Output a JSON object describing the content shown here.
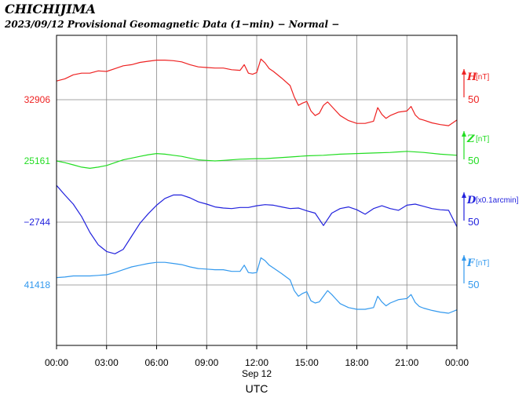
{
  "chart_data": {
    "type": "line",
    "title": "CHICHIJIMA",
    "subtitle": "2023/09/12  Provisional Geomagnetic Data (1−min)  − Normal −",
    "xlabel": "UTC",
    "date_label": "Sep 12",
    "x_ticks": [
      "00:00",
      "03:00",
      "06:00",
      "09:00",
      "12:00",
      "15:00",
      "18:00",
      "21:00",
      "00:00"
    ],
    "xlim_hours": [
      0,
      24
    ],
    "grid": true,
    "series": [
      {
        "name": "H",
        "unit": "[nT]",
        "baseline": "32906",
        "scale_label": "50",
        "color": "#ee2222",
        "x": [
          0,
          0.5,
          1,
          1.5,
          2,
          2.5,
          3,
          3.5,
          4,
          4.5,
          5,
          5.5,
          6,
          6.5,
          7,
          7.5,
          8,
          8.5,
          9,
          9.5,
          10,
          10.5,
          11,
          11.25,
          11.5,
          11.75,
          12,
          12.25,
          12.5,
          12.75,
          13,
          13.5,
          14,
          14.25,
          14.5,
          14.75,
          15,
          15.25,
          15.5,
          15.75,
          16,
          16.25,
          16.5,
          16.75,
          17,
          17.5,
          18,
          18.5,
          19,
          19.25,
          19.5,
          19.75,
          20,
          20.5,
          21,
          21.25,
          21.5,
          21.75,
          22,
          22.5,
          23,
          23.5,
          24
        ],
        "y": [
          33,
          37,
          44,
          47,
          47,
          51,
          50,
          55,
          60,
          62,
          66,
          68,
          70,
          70,
          69,
          67,
          62,
          58,
          57,
          56,
          56,
          53,
          52,
          62,
          47,
          45,
          48,
          72,
          65,
          55,
          50,
          38,
          25,
          5,
          -10,
          -6,
          -3,
          -20,
          -28,
          -24,
          -10,
          -4,
          -12,
          -20,
          -28,
          -37,
          -42,
          -42,
          -38,
          -14,
          -26,
          -33,
          -28,
          -22,
          -20,
          -12,
          -27,
          -34,
          -36,
          -41,
          -44,
          -46,
          -36
        ]
      },
      {
        "name": "Z",
        "unit": "[nT]",
        "baseline": "25161",
        "scale_label": "50",
        "color": "#22dd22",
        "x": [
          0,
          0.5,
          1,
          1.5,
          2,
          2.5,
          3,
          3.5,
          4,
          4.5,
          5,
          5.5,
          6,
          6.5,
          7,
          7.5,
          8,
          8.5,
          9,
          9.5,
          10,
          11,
          12,
          12.5,
          13,
          14,
          15,
          16,
          17,
          18,
          19,
          20,
          21,
          22,
          23,
          24
        ],
        "y": [
          0,
          -3,
          -7,
          -11,
          -13,
          -11,
          -8,
          -3,
          2,
          5,
          8,
          11,
          13,
          12,
          10,
          8,
          5,
          2,
          1,
          0,
          1,
          3,
          4,
          4,
          5,
          7,
          9,
          10,
          12,
          13,
          14,
          15,
          17,
          15,
          12,
          10
        ]
      },
      {
        "name": "D",
        "unit": "[x0.1arcmin]",
        "baseline": "−2744",
        "scale_label": "50",
        "color": "#2222dd",
        "x": [
          0,
          0.5,
          1,
          1.5,
          2,
          2.5,
          3,
          3.5,
          4,
          4.5,
          5,
          5.5,
          6,
          6.5,
          7,
          7.5,
          8,
          8.5,
          9,
          9.5,
          10,
          10.5,
          11,
          11.5,
          12,
          12.5,
          13,
          13.5,
          14,
          14.5,
          15,
          15.5,
          16,
          16.5,
          17,
          17.5,
          18,
          18.5,
          19,
          19.5,
          20,
          20.5,
          21,
          21.5,
          22,
          22.5,
          23,
          23.5,
          24
        ],
        "y": [
          65,
          48,
          32,
          10,
          -18,
          -40,
          -52,
          -56,
          -48,
          -25,
          -2,
          15,
          30,
          42,
          48,
          48,
          43,
          36,
          32,
          27,
          25,
          24,
          26,
          26,
          29,
          31,
          30,
          27,
          24,
          25,
          20,
          16,
          -6,
          16,
          24,
          27,
          22,
          14,
          24,
          29,
          24,
          21,
          30,
          32,
          28,
          24,
          22,
          21,
          -8
        ]
      },
      {
        "name": "F",
        "unit": "[nT]",
        "baseline": "41418",
        "scale_label": "50",
        "color": "#3399ee",
        "x": [
          0,
          0.5,
          1,
          1.5,
          2,
          2.5,
          3,
          3.5,
          4,
          4.5,
          5,
          5.5,
          6,
          6.5,
          7,
          7.5,
          8,
          8.5,
          9,
          9.5,
          10,
          10.5,
          11,
          11.25,
          11.5,
          11.75,
          12,
          12.25,
          12.5,
          12.75,
          13,
          13.5,
          14,
          14.25,
          14.5,
          14.75,
          15,
          15.25,
          15.5,
          15.75,
          16,
          16.25,
          16.5,
          16.75,
          17,
          17.5,
          18,
          18.5,
          19,
          19.25,
          19.5,
          19.75,
          20,
          20.5,
          21,
          21.25,
          21.5,
          21.75,
          22,
          22.5,
          23,
          23.5,
          24
        ],
        "y": [
          13,
          14,
          16,
          16,
          16,
          17,
          18,
          22,
          27,
          32,
          35,
          38,
          40,
          40,
          38,
          36,
          32,
          29,
          28,
          27,
          27,
          24,
          24,
          35,
          22,
          21,
          22,
          48,
          43,
          35,
          30,
          20,
          9,
          -10,
          -20,
          -15,
          -12,
          -28,
          -32,
          -30,
          -20,
          -10,
          -17,
          -25,
          -33,
          -40,
          -43,
          -43,
          -40,
          -20,
          -30,
          -37,
          -32,
          -26,
          -24,
          -17,
          -31,
          -38,
          -41,
          -45,
          -48,
          -50,
          -44
        ]
      }
    ]
  }
}
